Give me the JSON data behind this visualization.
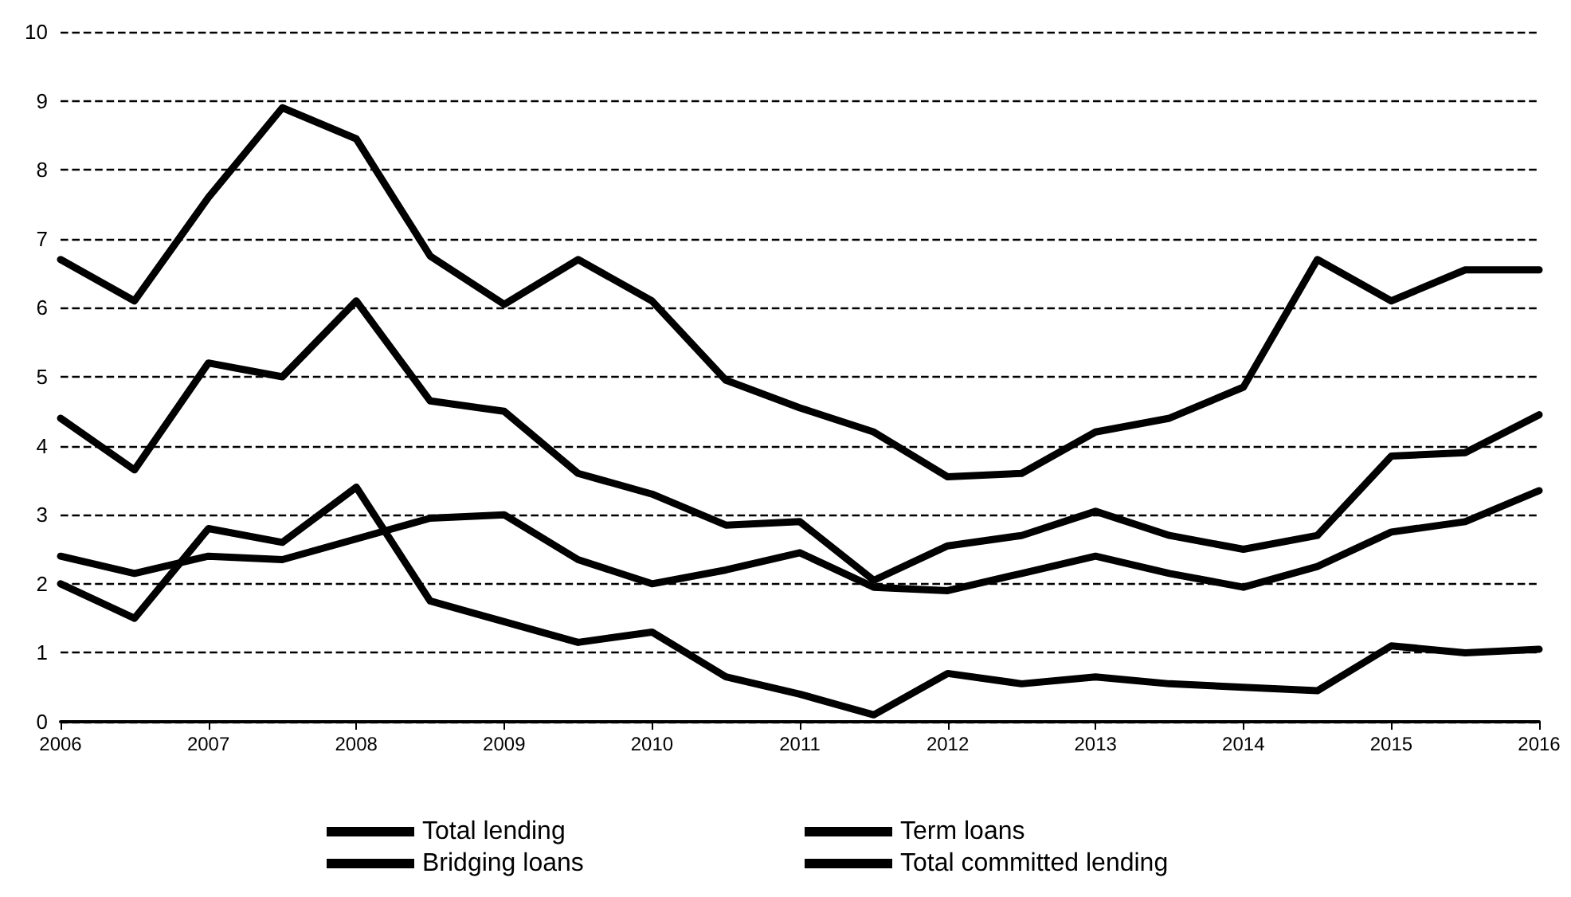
{
  "chart_data": {
    "type": "line",
    "x": [
      2006,
      2006.5,
      2007,
      2007.5,
      2008,
      2008.5,
      2009,
      2009.5,
      2010,
      2010.5,
      2011,
      2011.5,
      2012,
      2012.5,
      2013,
      2013.5,
      2014,
      2014.5,
      2015,
      2015.5,
      2016
    ],
    "series": [
      {
        "name": "Total lending",
        "color": "#000000",
        "values": [
          6.7,
          6.1,
          7.6,
          8.9,
          8.45,
          6.75,
          6.05,
          6.7,
          6.1,
          4.95,
          4.55,
          4.2,
          3.55,
          3.6,
          4.2,
          4.4,
          4.85,
          6.7,
          6.1,
          6.55,
          6.55
        ]
      },
      {
        "name": "Term loans",
        "color": "#000000",
        "values": [
          4.4,
          3.65,
          5.2,
          5.0,
          6.1,
          4.65,
          4.5,
          3.6,
          3.3,
          2.85,
          2.9,
          2.05,
          2.55,
          2.7,
          3.05,
          2.7,
          2.5,
          2.7,
          3.85,
          3.9,
          4.45
        ]
      },
      {
        "name": "Bridging loans",
        "color": "#000000",
        "values": [
          2.0,
          1.5,
          2.8,
          2.6,
          3.4,
          1.75,
          1.45,
          1.15,
          1.3,
          0.65,
          0.4,
          0.1,
          0.7,
          0.55,
          0.65,
          0.55,
          0.5,
          0.45,
          1.1,
          1.0,
          1.05
        ]
      },
      {
        "name": "Total committed lending",
        "color": "#000000",
        "values": [
          2.4,
          2.15,
          2.4,
          2.35,
          2.65,
          2.95,
          3.0,
          2.35,
          2.0,
          2.2,
          2.45,
          1.95,
          1.9,
          2.15,
          2.4,
          2.15,
          1.95,
          2.25,
          2.75,
          2.9,
          3.35
        ]
      }
    ],
    "xlim": [
      2006,
      2016
    ],
    "xticks": [
      2006,
      2007,
      2008,
      2009,
      2010,
      2011,
      2012,
      2013,
      2014,
      2015,
      2016
    ],
    "ylim": [
      0,
      10
    ],
    "yticks": [
      0,
      1,
      2,
      3,
      4,
      5,
      6,
      7,
      8,
      9,
      10
    ],
    "grid": "y",
    "legend": "bottom",
    "marker": "none",
    "line_style": "solid"
  }
}
